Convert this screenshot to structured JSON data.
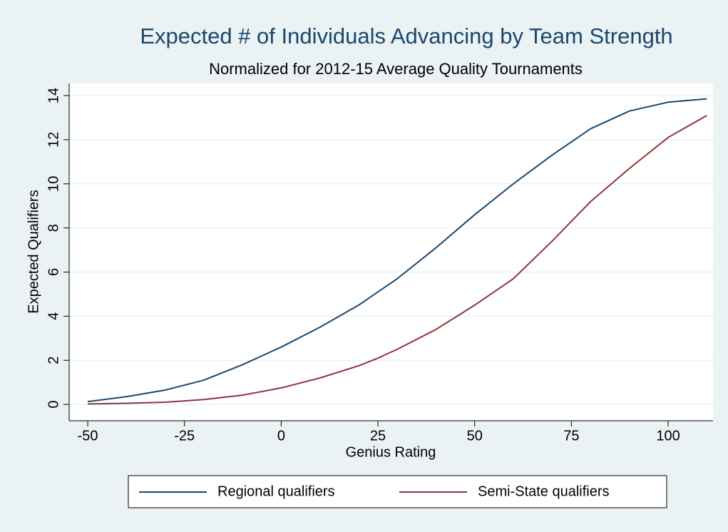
{
  "chart_data": {
    "type": "line",
    "title": "Expected # of Individuals Advancing by Team Strength",
    "subtitle": "Normalized for 2012-15 Average Quality Tournaments",
    "x_label": "Genius Rating",
    "y_label": "Expected Qualifiers",
    "x": [
      -50,
      -40,
      -30,
      -20,
      -10,
      0,
      10,
      20,
      25,
      30,
      40,
      50,
      60,
      70,
      75,
      80,
      90,
      100,
      110
    ],
    "series": [
      {
        "name": "Regional qualifiers",
        "color": "#1a476f",
        "values": [
          0.13,
          0.35,
          0.65,
          1.1,
          1.8,
          2.6,
          3.5,
          4.5,
          5.1,
          5.7,
          7.1,
          8.6,
          10.0,
          11.3,
          11.9,
          12.5,
          13.3,
          13.7,
          13.85
        ]
      },
      {
        "name": "Semi-State qualifiers",
        "color": "#90353b",
        "values": [
          0.02,
          0.05,
          0.1,
          0.22,
          0.42,
          0.75,
          1.2,
          1.75,
          2.1,
          2.5,
          3.4,
          4.5,
          5.7,
          7.4,
          8.3,
          9.2,
          10.7,
          12.1,
          13.1
        ]
      }
    ],
    "xlim": [
      -54.8,
      111.6
    ],
    "ylim": [
      -0.74,
      14.55
    ],
    "xticks": [
      -50,
      -25,
      0,
      25,
      50,
      75,
      100
    ],
    "yticks": [
      0,
      2,
      4,
      6,
      8,
      10,
      12,
      14
    ],
    "grid": true,
    "legend": "bottom"
  }
}
